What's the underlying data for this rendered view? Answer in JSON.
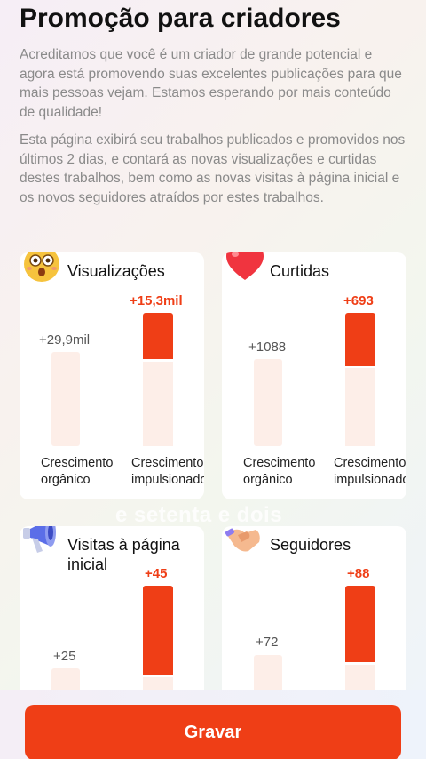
{
  "header": {
    "title": "Promoção para criadores"
  },
  "intro": {
    "paragraph1": "Acreditamos que você é um criador de grande potencial e agora está promovendo suas excelentes publicações para que mais pessoas vejam. Estamos esperando por mais conteúdo de qualidade!",
    "paragraph2": "Esta página exibirá seu trabalhos publicados e promovidos nos últimos 2 dias, e contará as novas visualizações e curtidas destes trabalhos, bem como as novas visitas à página inicial e os novos seguidores atraídos por estes trabalhos."
  },
  "labels": {
    "organic": "Crescimento orgânico",
    "boosted": "Crescimento impulsionado"
  },
  "cards": {
    "views": {
      "title": "Visualizações",
      "organic": "+29,9mil",
      "boosted": "+15,3mil",
      "icon": "shocked-face-icon"
    },
    "likes": {
      "title": "Curtidas",
      "organic": "+1088",
      "boosted": "+693",
      "icon": "heart-icon"
    },
    "visits": {
      "title": "Visitas à página inicial",
      "organic": "+25",
      "boosted": "+45",
      "icon": "megaphone-icon"
    },
    "followers": {
      "title": "Seguidores",
      "organic": "+72",
      "boosted": "+88",
      "icon": "handshake-icon"
    }
  },
  "overlay_caption": "e setenta e dois",
  "footer": {
    "save_label": "Gravar"
  },
  "colors": {
    "accent": "#ef3e16",
    "bar_light": "#fdeee8"
  }
}
